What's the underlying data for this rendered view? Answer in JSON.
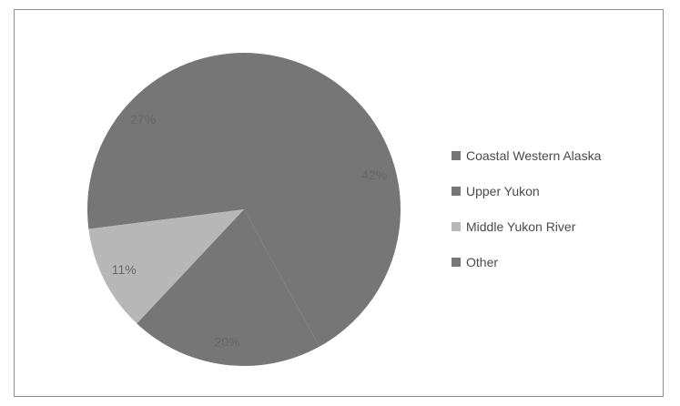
{
  "chart_data": {
    "type": "pie",
    "title": "",
    "categories": [
      "Coastal Western Alaska",
      "Upper Yukon",
      "Middle Yukon River",
      "Other"
    ],
    "values": [
      42,
      20,
      11,
      27
    ],
    "labels": [
      "42%",
      "20%",
      "11%",
      "27%"
    ],
    "colors": [
      "#767676",
      "#767676",
      "#b7b7b7",
      "#767676"
    ],
    "start_angle_deg": 0,
    "direction": "clockwise",
    "legend_position": "right"
  }
}
